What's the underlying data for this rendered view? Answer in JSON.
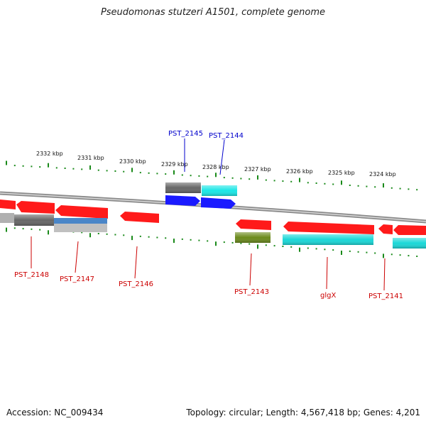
{
  "title": "Pseudomonas stutzeri A1501, complete genome",
  "footer": {
    "accession": "Accession: NC_009434",
    "topology": "Topology: circular; Length: 4,567,418 bp; Genes: 4,201"
  },
  "colors": {
    "red": "#ff1a1a",
    "blue": "#1a1aff",
    "cyan": "#19d7d7",
    "gray": "#666666",
    "olive": "#6b8a1c",
    "steel": "#4a86c8",
    "silver": "#b0b0b0",
    "tick": "#1a8a1a",
    "label_red": "#cc0000",
    "label_blue": "#0000cc"
  },
  "scale_labels": [
    "2332 kbp",
    "2331 kbp",
    "2330 kbp",
    "2329 kbp",
    "2328 kbp",
    "2327 kbp",
    "2326 kbp",
    "2325 kbp",
    "2324 kbp"
  ],
  "gene_labels": [
    {
      "text": "PST_2145",
      "color": "blue"
    },
    {
      "text": "PST_2144",
      "color": "blue"
    },
    {
      "text": "PST_2148",
      "color": "red"
    },
    {
      "text": "PST_2147",
      "color": "red"
    },
    {
      "text": "PST_2146",
      "color": "red"
    },
    {
      "text": "PST_2143",
      "color": "red"
    },
    {
      "text": "glgX",
      "color": "red"
    },
    {
      "text": "PST_2141",
      "color": "red"
    }
  ]
}
